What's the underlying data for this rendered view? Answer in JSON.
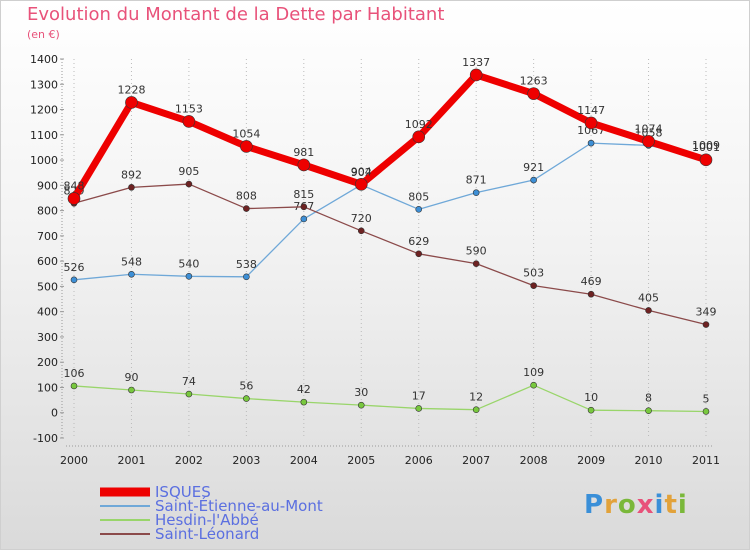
{
  "title": "Evolution du Montant de la Dette par Habitant",
  "unit_label": "(en €)",
  "logo": {
    "text": "Proxiti",
    "colors": [
      "#3a8fd8",
      "#e2a23a",
      "#7ab83a",
      "#e8527a",
      "#3a8fd8",
      "#e2a23a",
      "#7ab83a"
    ]
  },
  "chart_data": {
    "type": "line",
    "x": [
      "2000",
      "2001",
      "2002",
      "2003",
      "2004",
      "2005",
      "2006",
      "2007",
      "2008",
      "2009",
      "2010",
      "2011"
    ],
    "yticks": [
      -100,
      0,
      100,
      200,
      300,
      400,
      500,
      600,
      700,
      800,
      900,
      1000,
      1100,
      1200,
      1300,
      1400
    ],
    "ylim": [
      -100,
      1400
    ],
    "grid": "vertical-dotted",
    "series": [
      {
        "name": "Saint-Étienne-au-Mont",
        "color": "#6fa8d8",
        "point": "#3d8fd6",
        "width": 1.3,
        "r": 3,
        "values": [
          526,
          548,
          540,
          538,
          767,
          902,
          805,
          871,
          921,
          1067,
          1058,
          1009
        ]
      },
      {
        "name": "Hesdin-l'Abbé",
        "color": "#99d56a",
        "point": "#78c83e",
        "width": 1.3,
        "r": 3,
        "values": [
          106,
          90,
          74,
          56,
          42,
          30,
          17,
          12,
          109,
          10,
          8,
          5
        ]
      },
      {
        "name": "Saint-Léonard",
        "color": "#8b4a4a",
        "point": "#6e2222",
        "width": 1.3,
        "r": 3,
        "values": [
          829,
          892,
          905,
          808,
          815,
          720,
          629,
          590,
          503,
          469,
          405,
          349
        ]
      },
      {
        "name": "ISQUES",
        "color": "#ee0000",
        "point": "#ee0000",
        "width": 7,
        "r": 6,
        "values": [
          848,
          1228,
          1153,
          1054,
          981,
          904,
          1092,
          1337,
          1263,
          1147,
          1074,
          1001
        ]
      }
    ],
    "legend": [
      "ISQUES",
      "Saint-Étienne-au-Mont",
      "Hesdin-l'Abbé",
      "Saint-Léonard"
    ],
    "legend_position": "bottom-left"
  }
}
